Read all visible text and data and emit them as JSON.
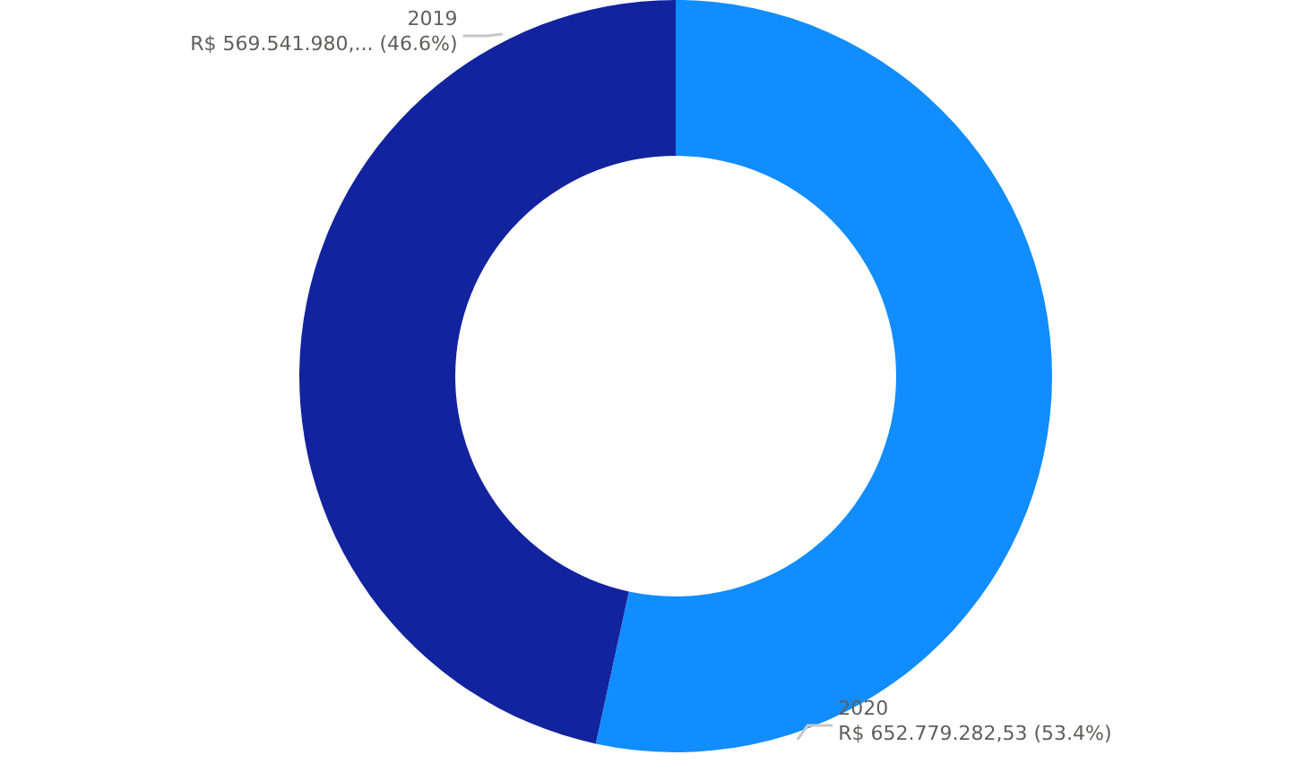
{
  "chart_data": {
    "type": "donut",
    "categories": [
      "2020",
      "2019"
    ],
    "values": [
      652779282.53,
      569541980
    ],
    "colors": [
      "#118dff",
      "#12239e"
    ],
    "value_labels": [
      "R$ 652.779.282,53 (53.4%)",
      "R$ 569.541.980,... (46.6%)"
    ]
  }
}
